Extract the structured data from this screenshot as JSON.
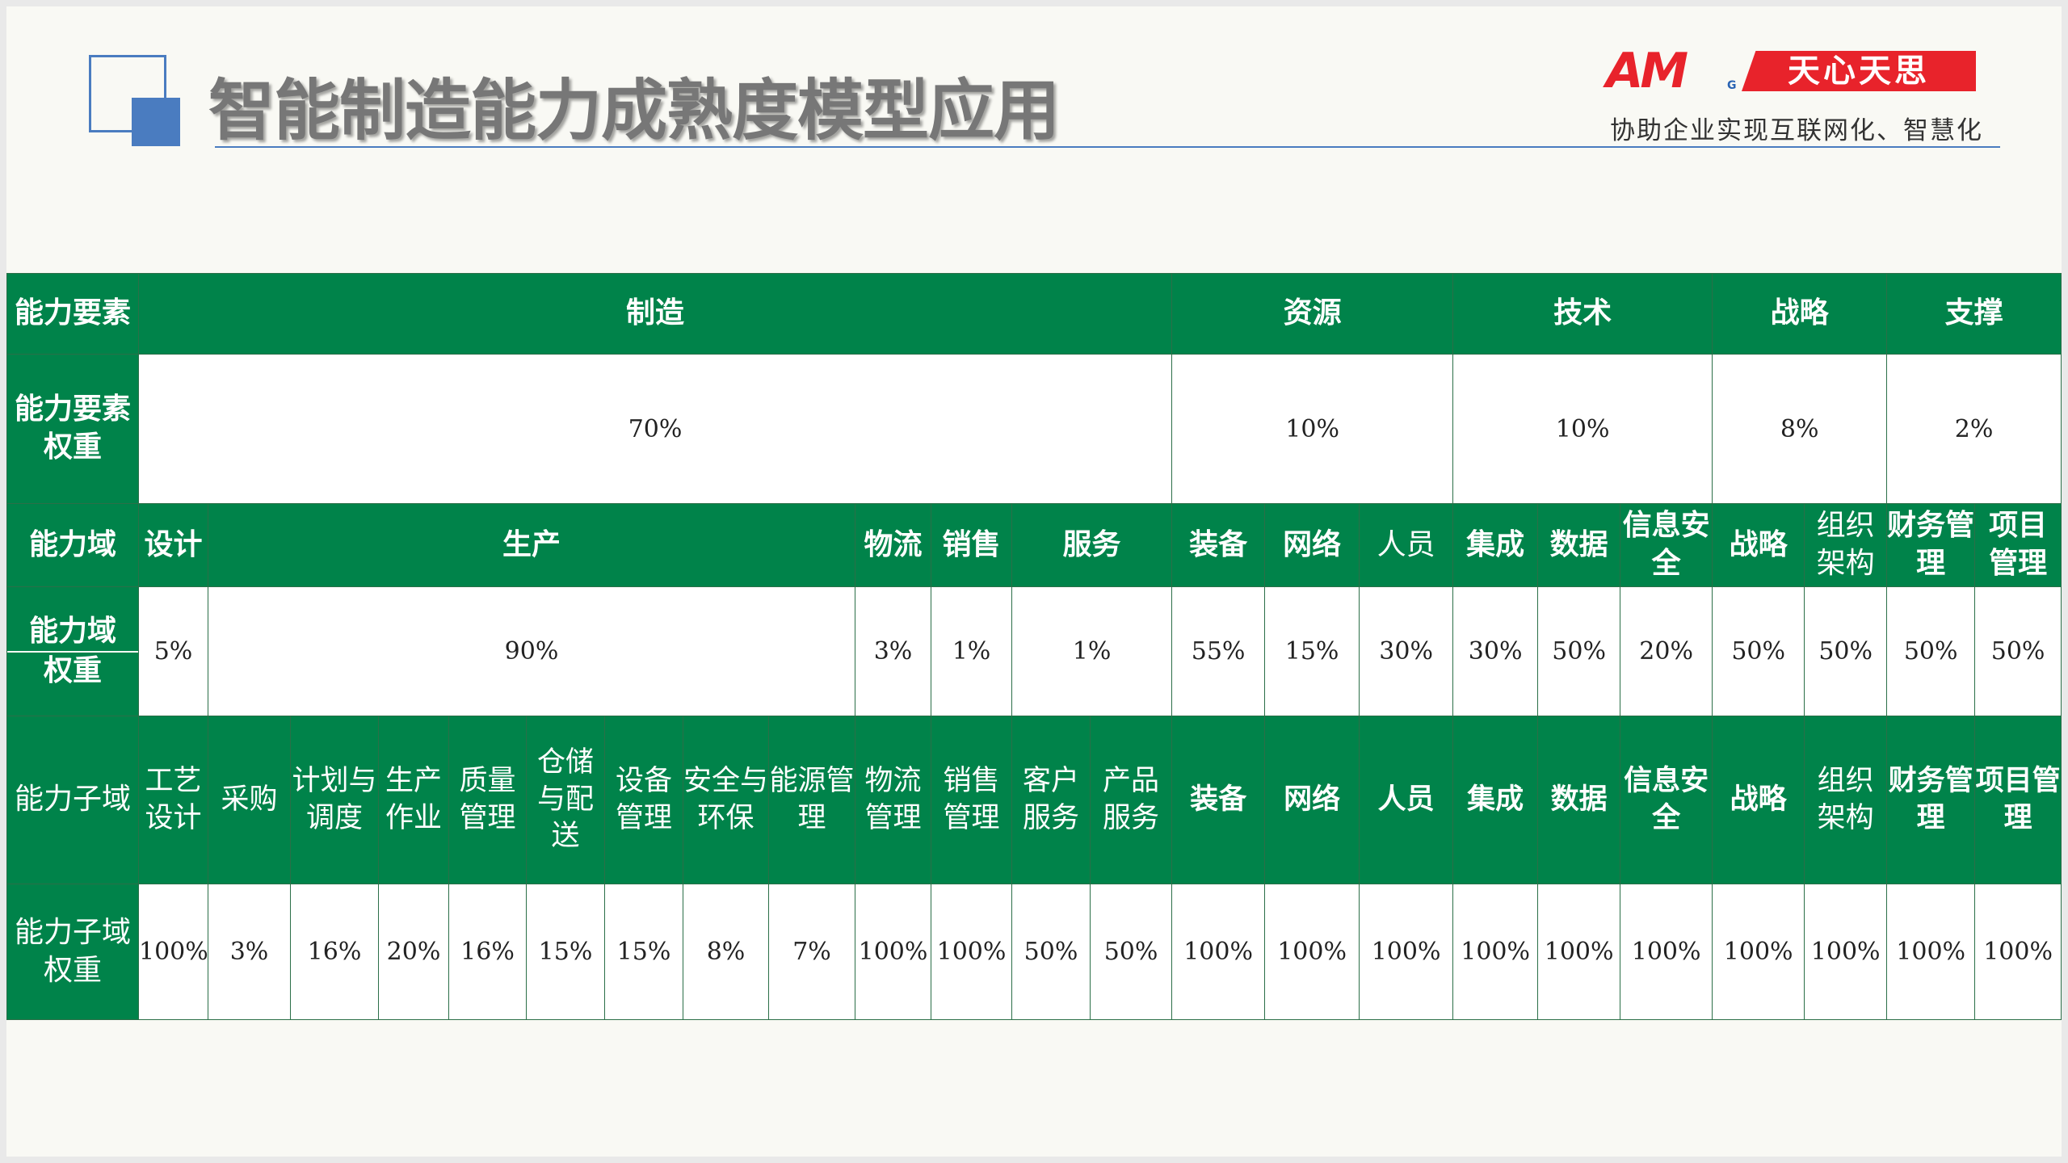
{
  "title": "智能制造能力成熟度模型应用",
  "logo": {
    "am": "AM",
    "g": "G",
    "brand": "天心天思"
  },
  "slogan": "协助企业实现互联网化、智慧化",
  "labels": {
    "element": "能力要素",
    "element_weight": "能力要素权重",
    "domain": "能力域",
    "domain_weight_top": "能力域",
    "domain_weight_bottom": "权重",
    "subdomain": "能力子域",
    "subdomain_weight": "能力子域权重"
  },
  "elements": [
    {
      "name": "制造",
      "weight": "70%"
    },
    {
      "name": "资源",
      "weight": "10%"
    },
    {
      "name": "技术",
      "weight": "10%"
    },
    {
      "name": "战略",
      "weight": "8%"
    },
    {
      "name": "支撑",
      "weight": "2%"
    }
  ],
  "domains": [
    {
      "name": "设计",
      "weight": "5%"
    },
    {
      "name": "生产",
      "weight": "90%"
    },
    {
      "name": "物流",
      "weight": "3%"
    },
    {
      "name": "销售",
      "weight": "1%"
    },
    {
      "name": "服务",
      "weight": "1%"
    },
    {
      "name": "装备",
      "weight": "55%"
    },
    {
      "name": "网络",
      "weight": "15%"
    },
    {
      "name": "人员",
      "weight": "30%"
    },
    {
      "name": "集成",
      "weight": "30%"
    },
    {
      "name": "数据",
      "weight": "50%"
    },
    {
      "name": "信息安全",
      "weight": "20%"
    },
    {
      "name": "战略",
      "weight": "50%"
    },
    {
      "name": "组织架构",
      "weight": "50%"
    },
    {
      "name": "财务管理",
      "weight": "50%"
    },
    {
      "name": "项目管理",
      "weight": "50%"
    }
  ],
  "subdomains": [
    {
      "name": "工艺设计",
      "weight": "100%"
    },
    {
      "name": "采购",
      "weight": "3%"
    },
    {
      "name": "计划与调度",
      "weight": "16%"
    },
    {
      "name": "生产作业",
      "weight": "20%"
    },
    {
      "name": "质量管理",
      "weight": "16%"
    },
    {
      "name": "仓储与配送",
      "weight": "15%"
    },
    {
      "name": "设备管理",
      "weight": "15%"
    },
    {
      "name": "安全与环保",
      "weight": "8%"
    },
    {
      "name": "能源管理",
      "weight": "7%"
    },
    {
      "name": "物流管理",
      "weight": "100%"
    },
    {
      "name": "销售管理",
      "weight": "100%"
    },
    {
      "name": "客户服务",
      "weight": "50%"
    },
    {
      "name": "产品服务",
      "weight": "50%"
    },
    {
      "name": "装备",
      "weight": "100%"
    },
    {
      "name": "网络",
      "weight": "100%"
    },
    {
      "name": "人员",
      "weight": "100%"
    },
    {
      "name": "集成",
      "weight": "100%"
    },
    {
      "name": "数据",
      "weight": "100%"
    },
    {
      "name": "信息安全",
      "weight": "100%"
    },
    {
      "name": "战略",
      "weight": "100%"
    },
    {
      "name": "组织架构",
      "weight": "100%"
    },
    {
      "name": "财务管理",
      "weight": "100%"
    },
    {
      "name": "项目管理",
      "weight": "100%"
    }
  ],
  "colors": {
    "header_green": "#00834a",
    "accent_blue": "#4a7cc0",
    "logo_red": "#e8232b"
  }
}
